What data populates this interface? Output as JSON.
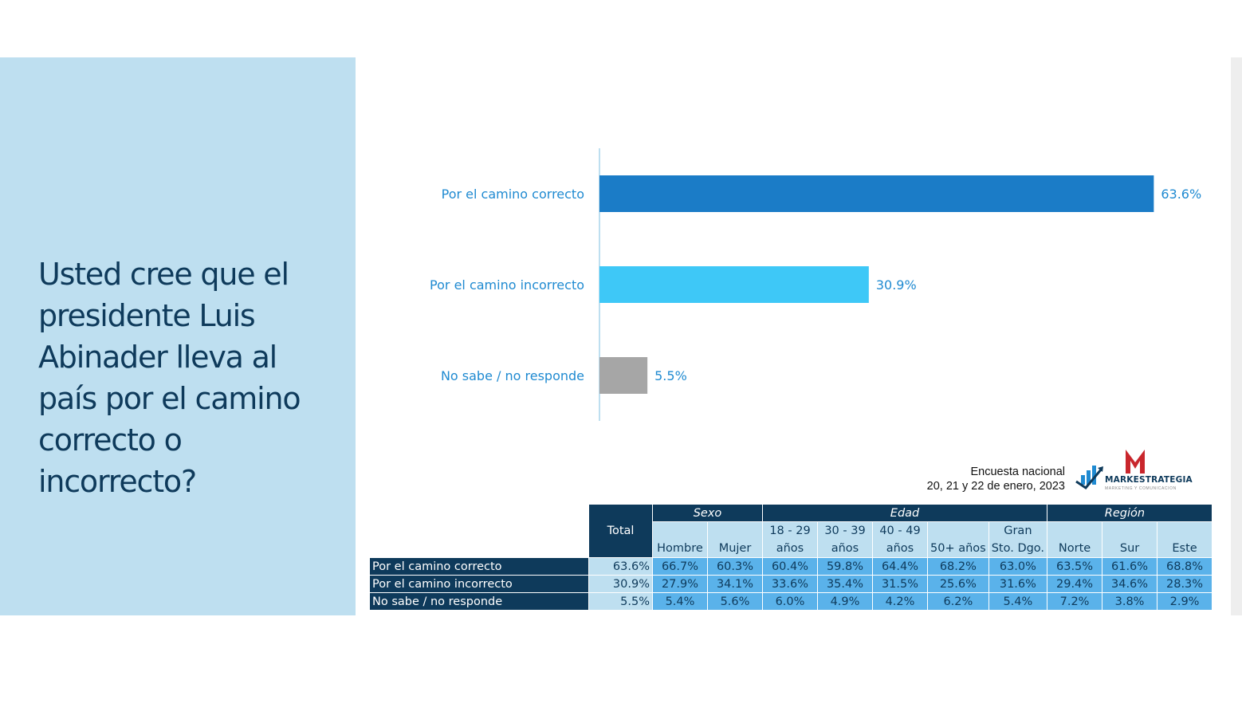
{
  "question": "Usted cree que el presidente Luis Abinader lleva al país por el camino correcto o incorrecto?",
  "colors": {
    "panel": "#bedff0",
    "navy": "#0e3a5b",
    "bar1": "#1b7cc7",
    "bar2": "#3ec8f7",
    "bar3": "#a6a6a6",
    "label": "#1f8ad1"
  },
  "chart_data": {
    "type": "bar",
    "orientation": "horizontal",
    "categories": [
      "Por el camino correcto",
      "Por el camino incorrecto",
      "No sabe / no responde"
    ],
    "values": [
      63.6,
      30.9,
      5.5
    ],
    "value_labels": [
      "63.6%",
      "30.9%",
      "5.5%"
    ],
    "xlim": [
      0,
      75
    ],
    "grid": false,
    "legend": "none"
  },
  "source": {
    "line1": "Encuesta nacional",
    "line2": "20, 21 y 22 de enero, 2023"
  },
  "logo": {
    "name": "MARKESTRATEGIA",
    "sub": "MARKETING Y COMUNICACION"
  },
  "table": {
    "total_header": "Total",
    "groups": {
      "sexo": "Sexo",
      "edad": "Edad",
      "region": "Región"
    },
    "columns": [
      {
        "l1": "",
        "l2": "Hombre"
      },
      {
        "l1": "",
        "l2": "Mujer"
      },
      {
        "l1": "18 - 29",
        "l2": "años"
      },
      {
        "l1": "30 - 39",
        "l2": "años"
      },
      {
        "l1": "40 - 49",
        "l2": "años"
      },
      {
        "l1": "",
        "l2": "50+ años"
      },
      {
        "l1": "Gran",
        "l2": "Sto. Dgo."
      },
      {
        "l1": "",
        "l2": "Norte"
      },
      {
        "l1": "",
        "l2": "Sur"
      },
      {
        "l1": "",
        "l2": "Este"
      }
    ],
    "rows": [
      {
        "label": "Por el camino correcto",
        "total": "63.6%",
        "values": [
          "66.7%",
          "60.3%",
          "60.4%",
          "59.8%",
          "64.4%",
          "68.2%",
          "63.0%",
          "63.5%",
          "61.6%",
          "68.8%"
        ]
      },
      {
        "label": "Por el camino incorrecto",
        "total": "30.9%",
        "values": [
          "27.9%",
          "34.1%",
          "33.6%",
          "35.4%",
          "31.5%",
          "25.6%",
          "31.6%",
          "29.4%",
          "34.6%",
          "28.3%"
        ]
      },
      {
        "label": "No sabe / no responde",
        "total": "5.5%",
        "values": [
          "5.4%",
          "5.6%",
          "6.0%",
          "4.9%",
          "4.2%",
          "6.2%",
          "5.4%",
          "7.2%",
          "3.8%",
          "2.9%"
        ]
      }
    ]
  }
}
